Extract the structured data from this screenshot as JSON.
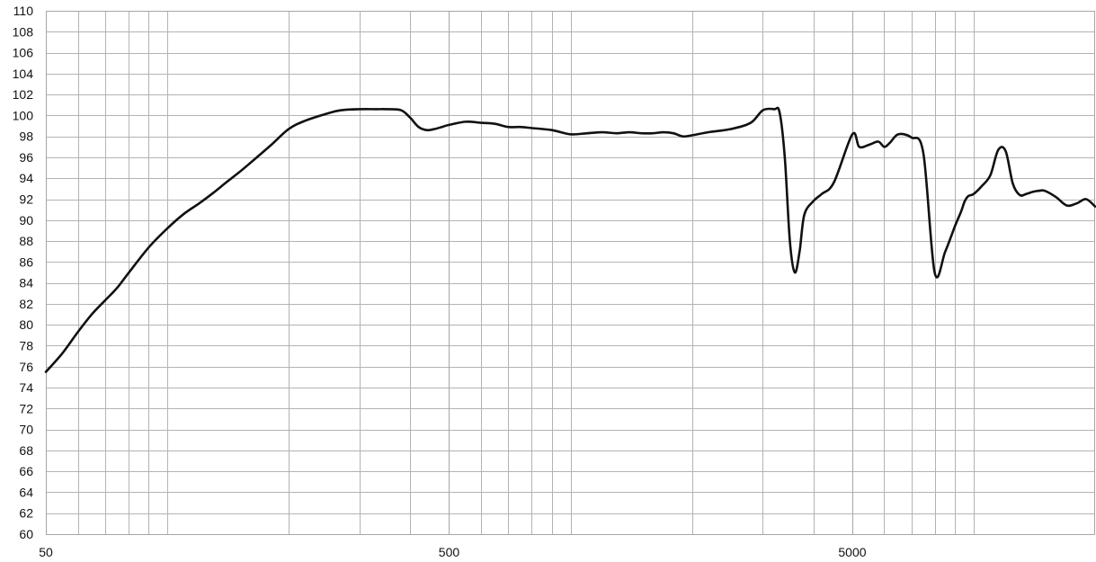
{
  "chart_data": {
    "type": "line",
    "title": "",
    "xlabel": "",
    "ylabel": "",
    "x_scale": "log",
    "xlim": [
      50,
      20000
    ],
    "ylim": [
      60,
      110
    ],
    "grid": true,
    "x_tick_labels": [
      "50",
      "500",
      "5000"
    ],
    "x_tick_values": [
      50,
      500,
      5000
    ],
    "y_tick_labels": [
      "60",
      "62",
      "64",
      "66",
      "68",
      "70",
      "72",
      "74",
      "76",
      "78",
      "80",
      "82",
      "84",
      "86",
      "88",
      "90",
      "92",
      "94",
      "96",
      "98",
      "100",
      "102",
      "104",
      "106",
      "108",
      "110"
    ],
    "y_tick_values": [
      60,
      62,
      64,
      66,
      68,
      70,
      72,
      74,
      76,
      78,
      80,
      82,
      84,
      86,
      88,
      90,
      92,
      94,
      96,
      98,
      100,
      102,
      104,
      106,
      108,
      110
    ],
    "series": [
      {
        "color": "#111111",
        "x": [
          50,
          55,
          60,
          65,
          70,
          75,
          80,
          90,
          100,
          110,
          120,
          130,
          140,
          150,
          160,
          180,
          200,
          220,
          250,
          270,
          300,
          330,
          350,
          380,
          400,
          420,
          440,
          460,
          480,
          500,
          550,
          600,
          650,
          700,
          750,
          800,
          900,
          1000,
          1100,
          1200,
          1300,
          1400,
          1500,
          1600,
          1700,
          1800,
          1900,
          2000,
          2200,
          2500,
          2800,
          3000,
          3200,
          3300,
          3400,
          3500,
          3600,
          3700,
          3800,
          4000,
          4200,
          4500,
          5000,
          5200,
          5500,
          5800,
          6000,
          6200,
          6500,
          7000,
          7500,
          8000,
          8500,
          9000,
          9300,
          9500,
          9700,
          10000,
          10500,
          11000,
          11500,
          12000,
          12500,
          13000,
          13500,
          14000,
          14500,
          15000,
          16000,
          17000,
          18000,
          19000,
          20000
        ],
        "y": [
          75.5,
          77.3,
          79.3,
          81,
          82.3,
          83.5,
          84.9,
          87.4,
          89.2,
          90.6,
          91.6,
          92.6,
          93.6,
          94.5,
          95.4,
          97.1,
          98.7,
          99.5,
          100.2,
          100.5,
          100.6,
          100.6,
          100.6,
          100.5,
          99.8,
          98.9,
          98.6,
          98.7,
          98.9,
          99.1,
          99.4,
          99.3,
          99.2,
          98.9,
          98.9,
          98.8,
          98.6,
          98.2,
          98.3,
          98.4,
          98.3,
          98.4,
          98.3,
          98.3,
          98.4,
          98.3,
          98.0,
          98.1,
          98.4,
          98.7,
          99.3,
          100.5,
          100.6,
          100.3,
          96.0,
          88.0,
          85.0,
          87.0,
          90.5,
          91.8,
          92.5,
          93.6,
          98.2,
          97.0,
          97.2,
          97.5,
          97.0,
          97.4,
          98.2,
          97.9,
          96.4,
          85.0,
          87.0,
          89.5,
          90.8,
          91.8,
          92.3,
          92.5,
          93.3,
          94.3,
          96.7,
          96.6,
          93.5,
          92.4,
          92.5,
          92.7,
          92.8,
          92.8,
          92.2,
          91.4,
          91.6,
          92.0,
          91.3
        ]
      }
    ]
  }
}
